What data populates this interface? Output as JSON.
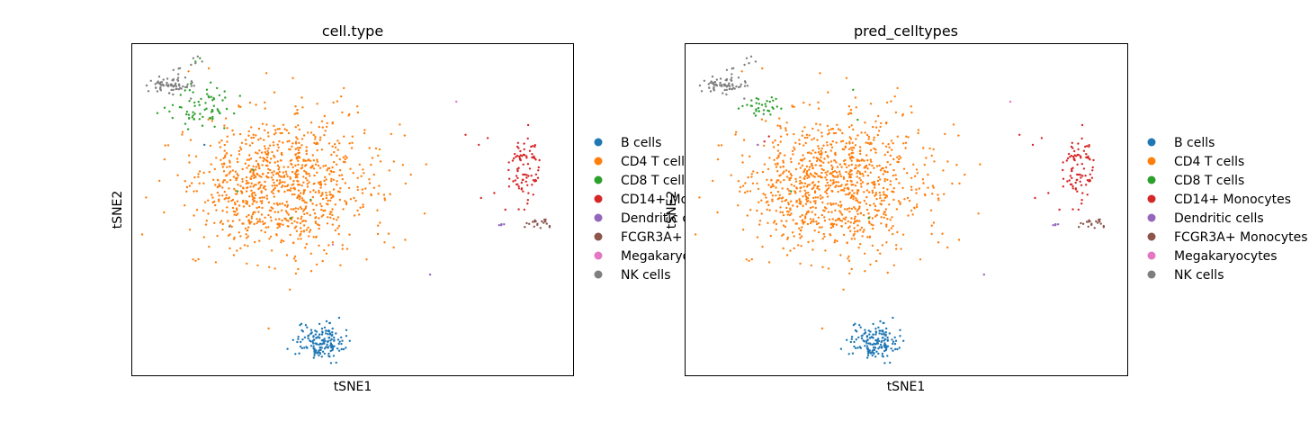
{
  "legend": {
    "entries": [
      {
        "label": "B cells",
        "color": "#1f77b4"
      },
      {
        "label": "CD4 T cells",
        "color": "#ff7f0e"
      },
      {
        "label": "CD8 T cells",
        "color": "#2ca02c"
      },
      {
        "label": "CD14+ Monocytes",
        "color": "#d62728"
      },
      {
        "label": "Dendritic cells",
        "color": "#9467bd"
      },
      {
        "label": "FCGR3A+ Monocytes",
        "color": "#8c564b"
      },
      {
        "label": "Megakaryocytes",
        "color": "#e377c2"
      },
      {
        "label": "NK cells",
        "color": "#7f7f7f"
      }
    ]
  },
  "chart_data": [
    {
      "type": "scatter",
      "title": "cell.type",
      "xlabel": "tSNE1",
      "ylabel": "tSNE2",
      "grid": false,
      "legend_position": "right",
      "xlim": [
        0,
        100
      ],
      "ylim": [
        0,
        100
      ],
      "series": [
        {
          "name": "B cells",
          "color": "#1f77b4",
          "cluster": {
            "center": [
              42.5,
              10.5
            ],
            "spread": [
              3.5,
              3.5
            ],
            "count": 160
          },
          "extra_points": [
            [
              16.5,
              69.5
            ],
            [
              22.2,
              45.0
            ]
          ]
        },
        {
          "name": "CD4 T cells",
          "color": "#ff7f0e",
          "cluster": {
            "center": [
              34.0,
              57.5
            ],
            "spread": [
              13.5,
              14.0
            ],
            "count": 950
          },
          "extra_points": [
            [
              36.5,
              89.5
            ],
            [
              48.0,
              86.5
            ],
            [
              51.2,
              79.2
            ],
            [
              53.8,
              68.5
            ],
            [
              52.5,
              61.0
            ],
            [
              50.3,
              53.5
            ],
            [
              47.4,
              84.0
            ],
            [
              30.5,
              91.0
            ]
          ]
        },
        {
          "name": "CD8 T cells",
          "color": "#2ca02c",
          "cluster": {
            "center": [
              15.5,
              81.5
            ],
            "spread": [
              4.5,
              4.5
            ],
            "count": 70
          },
          "extra_points": [
            [
              14.5,
              94.5
            ],
            [
              15.5,
              95.5
            ],
            [
              27.5,
              62.0
            ],
            [
              24.0,
              55.5
            ],
            [
              36.0,
              47.5
            ],
            [
              40.5,
              53.0
            ],
            [
              21.0,
              74.5
            ]
          ]
        },
        {
          "name": "CD14+ Monocytes",
          "color": "#d62728",
          "cluster": {
            "center": [
              89.0,
              63.0
            ],
            "spread": [
              2.6,
              6.5
            ],
            "count": 85
          },
          "extra_points": [
            [
              78.5,
              69.5
            ],
            [
              80.5,
              71.5
            ],
            [
              75.5,
              72.5
            ],
            [
              79.0,
              53.5
            ],
            [
              82.0,
              55.0
            ],
            [
              84.5,
              50.0
            ]
          ]
        },
        {
          "name": "Dendritic cells",
          "color": "#9467bd",
          "cluster": {
            "center": [
              83.5,
              45.5
            ],
            "spread": [
              0.5,
              0.5
            ],
            "count": 5
          },
          "extra_points": [
            [
              67.5,
              30.5
            ]
          ]
        },
        {
          "name": "FCGR3A+ Monocytes",
          "color": "#8c564b",
          "cluster": {
            "center": [
              92.0,
              46.0
            ],
            "spread": [
              1.8,
              1.2
            ],
            "count": 20
          },
          "extra_points": []
        },
        {
          "name": "Megakaryocytes",
          "color": "#e377c2",
          "cluster": {
            "center": [
              73.5,
              82.5
            ],
            "spread": [
              0.1,
              0.1
            ],
            "count": 1
          },
          "extra_points": [
            [
              45.5,
              39.5
            ]
          ]
        },
        {
          "name": "NK cells",
          "color": "#7f7f7f",
          "cluster": {
            "center": [
              8.5,
              87.5
            ],
            "spread": [
              3.3,
              2.2
            ],
            "count": 70
          },
          "extra_points": [
            [
              14.5,
              94.0
            ],
            [
              15.0,
              96.0
            ],
            [
              14.0,
              95.5
            ],
            [
              16.0,
              94.5
            ],
            [
              13.5,
              93.5
            ],
            [
              11.0,
              92.5
            ]
          ]
        }
      ]
    },
    {
      "type": "scatter",
      "title": "pred_celltypes",
      "xlabel": "tSNE1",
      "ylabel": "tSNE2",
      "grid": false,
      "legend_position": "right",
      "xlim": [
        0,
        100
      ],
      "ylim": [
        0,
        100
      ],
      "series": [
        {
          "name": "B cells",
          "color": "#1f77b4",
          "cluster": {
            "center": [
              42.5,
              10.5
            ],
            "spread": [
              3.5,
              3.5
            ],
            "count": 160
          },
          "extra_points": []
        },
        {
          "name": "CD4 T cells",
          "color": "#ff7f0e",
          "cluster": {
            "center": [
              34.0,
              57.5
            ],
            "spread": [
              13.5,
              14.0
            ],
            "count": 990
          },
          "extra_points": [
            [
              36.5,
              89.5
            ],
            [
              48.0,
              86.5
            ],
            [
              51.2,
              79.2
            ],
            [
              53.8,
              68.5
            ],
            [
              52.5,
              61.0
            ],
            [
              50.3,
              53.5
            ],
            [
              47.4,
              84.0
            ],
            [
              30.5,
              91.0
            ],
            [
              16.5,
              69.5
            ]
          ]
        },
        {
          "name": "CD8 T cells",
          "color": "#2ca02c",
          "cluster": {
            "center": [
              17.5,
              81.5
            ],
            "spread": [
              2.5,
              2.0
            ],
            "count": 35
          },
          "extra_points": [
            [
              38.0,
              86.0
            ],
            [
              24.0,
              55.5
            ],
            [
              41.5,
              47.5
            ],
            [
              39.0,
              77.0
            ]
          ]
        },
        {
          "name": "CD14+ Monocytes",
          "color": "#d62728",
          "cluster": {
            "center": [
              89.0,
              63.0
            ],
            "spread": [
              2.6,
              6.5
            ],
            "count": 85
          },
          "extra_points": [
            [
              78.5,
              69.5
            ],
            [
              80.5,
              71.5
            ],
            [
              75.5,
              72.5
            ],
            [
              79.0,
              53.5
            ],
            [
              82.0,
              55.0
            ],
            [
              84.5,
              50.0
            ],
            [
              19.0,
              72.0
            ],
            [
              18.0,
              70.5
            ]
          ]
        },
        {
          "name": "Dendritic cells",
          "color": "#9467bd",
          "cluster": {
            "center": [
              83.5,
              45.5
            ],
            "spread": [
              0.5,
              0.5
            ],
            "count": 5
          },
          "extra_points": [
            [
              67.5,
              30.5
            ],
            [
              16.5,
              69.5
            ]
          ]
        },
        {
          "name": "FCGR3A+ Monocytes",
          "color": "#8c564b",
          "cluster": {
            "center": [
              92.0,
              46.0
            ],
            "spread": [
              1.8,
              1.2
            ],
            "count": 20
          },
          "extra_points": []
        },
        {
          "name": "Megakaryocytes",
          "color": "#e377c2",
          "cluster": {
            "center": [
              73.5,
              82.5
            ],
            "spread": [
              0.1,
              0.1
            ],
            "count": 1
          },
          "extra_points": []
        },
        {
          "name": "NK cells",
          "color": "#7f7f7f",
          "cluster": {
            "center": [
              8.5,
              87.5
            ],
            "spread": [
              3.3,
              2.2
            ],
            "count": 70
          },
          "extra_points": [
            [
              14.5,
              94.0
            ],
            [
              15.0,
              96.0
            ],
            [
              14.0,
              95.5
            ],
            [
              16.0,
              94.5
            ],
            [
              13.5,
              93.5
            ],
            [
              11.0,
              92.5
            ]
          ]
        }
      ]
    }
  ]
}
